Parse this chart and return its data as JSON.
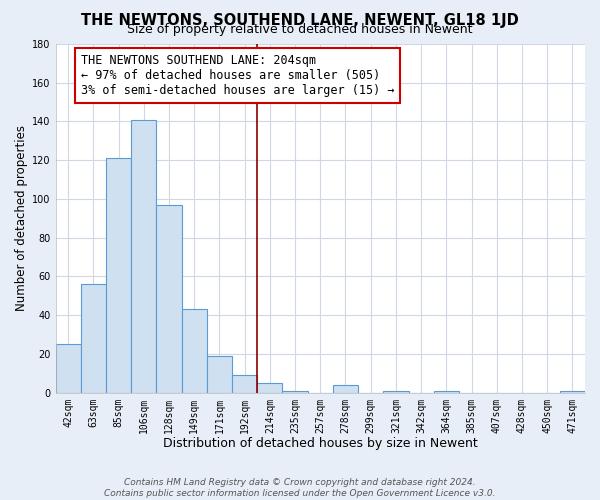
{
  "title": "THE NEWTONS, SOUTHEND LANE, NEWENT, GL18 1JD",
  "subtitle": "Size of property relative to detached houses in Newent",
  "xlabel": "Distribution of detached houses by size in Newent",
  "ylabel": "Number of detached properties",
  "bar_labels": [
    "42sqm",
    "63sqm",
    "85sqm",
    "106sqm",
    "128sqm",
    "149sqm",
    "171sqm",
    "192sqm",
    "214sqm",
    "235sqm",
    "257sqm",
    "278sqm",
    "299sqm",
    "321sqm",
    "342sqm",
    "364sqm",
    "385sqm",
    "407sqm",
    "428sqm",
    "450sqm",
    "471sqm"
  ],
  "bar_values": [
    25,
    56,
    121,
    141,
    97,
    43,
    19,
    9,
    5,
    1,
    0,
    4,
    0,
    1,
    0,
    1,
    0,
    0,
    0,
    0,
    1
  ],
  "bar_color": "#cfe0f0",
  "bar_edge_color": "#5b9bd5",
  "vline_x_index": 8,
  "vline_color": "#8b0000",
  "ylim": [
    0,
    180
  ],
  "yticks": [
    0,
    20,
    40,
    60,
    80,
    100,
    120,
    140,
    160,
    180
  ],
  "annotation_title": "THE NEWTONS SOUTHEND LANE: 204sqm",
  "annotation_line1": "← 97% of detached houses are smaller (505)",
  "annotation_line2": "3% of semi-detached houses are larger (15) →",
  "annotation_box_color": "#ffffff",
  "annotation_box_edge": "#cc0000",
  "footer_line1": "Contains HM Land Registry data © Crown copyright and database right 2024.",
  "footer_line2": "Contains public sector information licensed under the Open Government Licence v3.0.",
  "plot_bg_color": "#ffffff",
  "fig_bg_color": "#e8eef8",
  "grid_color": "#d0d8e8",
  "title_fontsize": 10.5,
  "subtitle_fontsize": 9,
  "xlabel_fontsize": 9,
  "ylabel_fontsize": 8.5,
  "tick_fontsize": 7,
  "footer_fontsize": 6.5,
  "annotation_fontsize": 8.5
}
